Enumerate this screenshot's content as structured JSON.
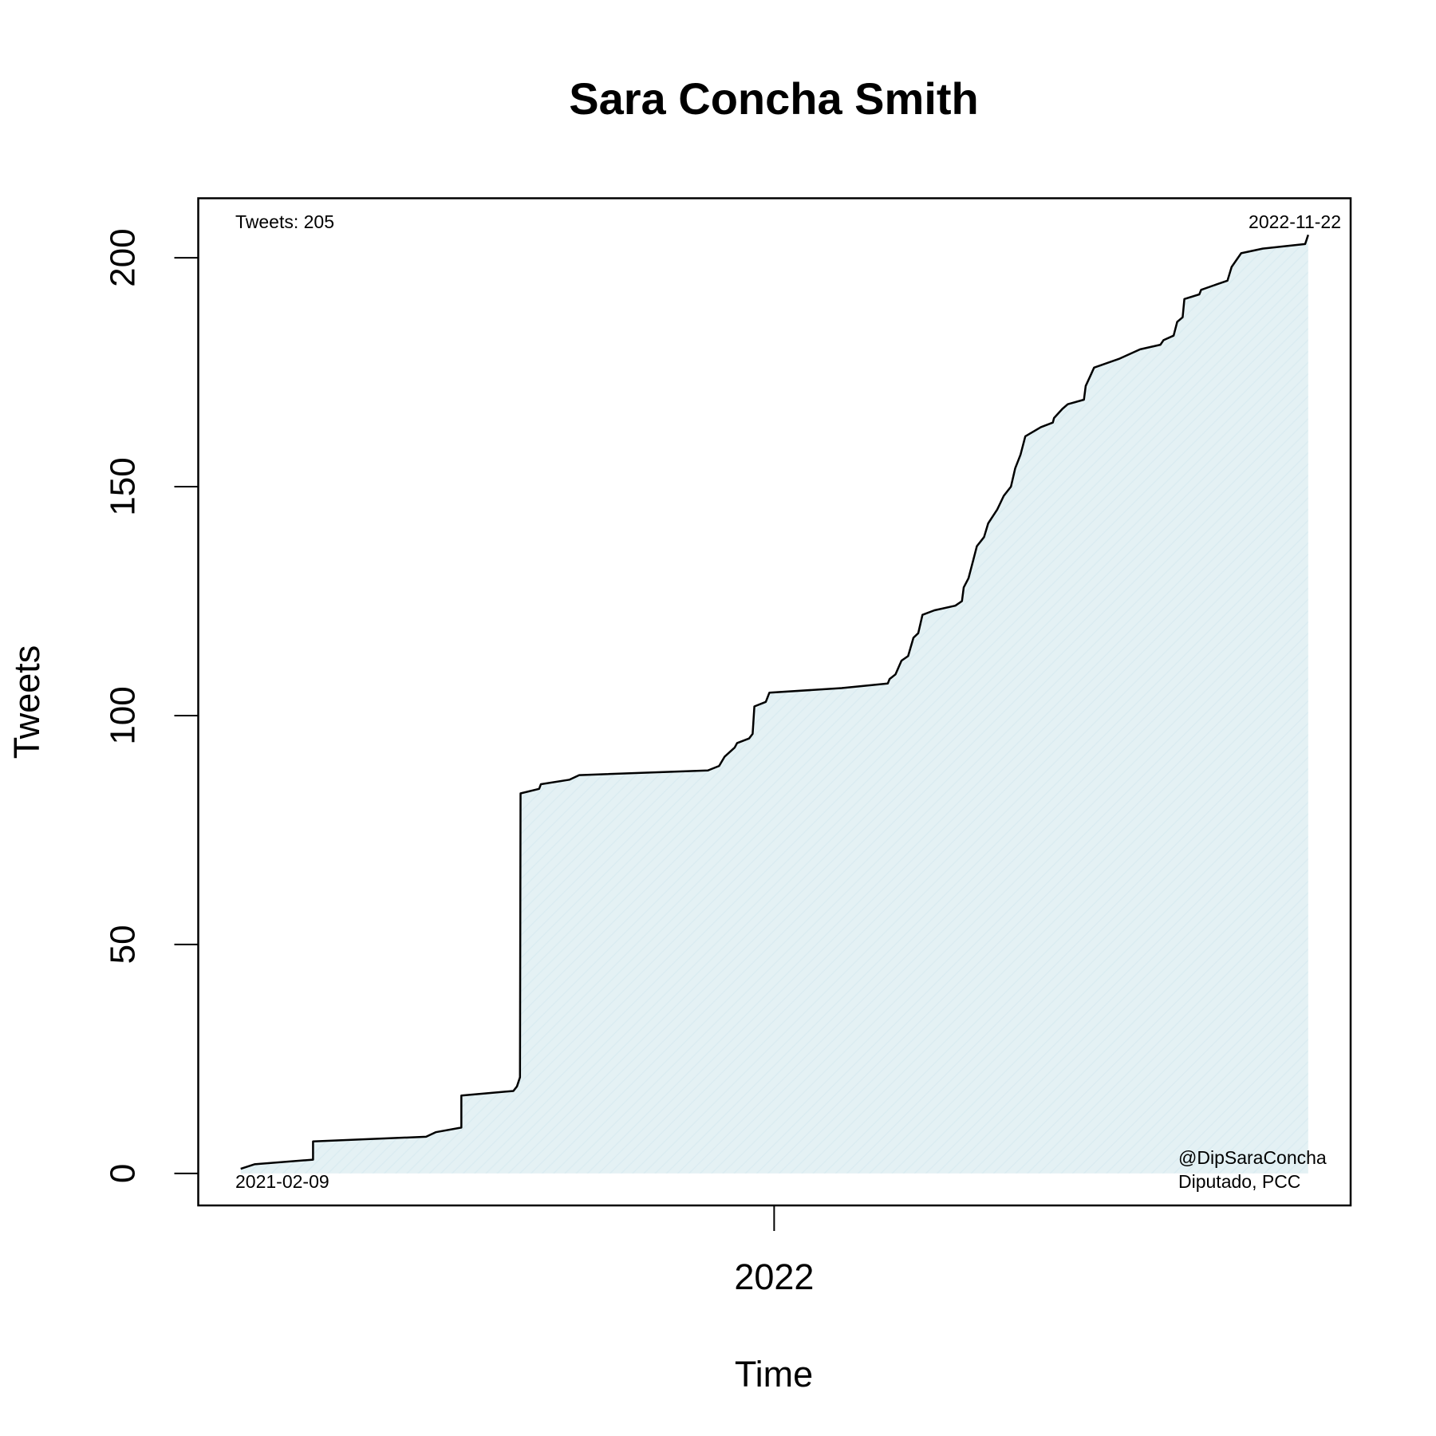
{
  "chart_data": {
    "type": "line",
    "title": "Sara Concha Smith",
    "x_label": "Time",
    "y_label": "Tweets",
    "x": [
      2021.108,
      2021.131,
      2021.229,
      2021.229,
      2021.418,
      2021.434,
      2021.477,
      2021.477,
      2021.564,
      2021.57,
      2021.575,
      2021.576,
      2021.607,
      2021.61,
      2021.658,
      2021.674,
      2021.889,
      2021.908,
      2021.917,
      2021.934,
      2021.938,
      2021.958,
      2021.964,
      2021.967,
      2021.986,
      2021.992,
      2022.113,
      2022.19,
      2022.193,
      2022.203,
      2022.213,
      2022.224,
      2022.233,
      2022.241,
      2022.248,
      2022.268,
      2022.303,
      2022.314,
      2022.317,
      2022.325,
      2022.333,
      2022.339,
      2022.351,
      2022.358,
      2022.373,
      2022.384,
      2022.396,
      2022.403,
      2022.412,
      2022.42,
      2022.446,
      2022.466,
      2022.468,
      2022.482,
      2022.491,
      2022.518,
      2022.521,
      2022.528,
      2022.535,
      2022.578,
      2022.612,
      2022.646,
      2022.651,
      2022.668,
      2022.674,
      2022.683,
      2022.686,
      2022.711,
      2022.714,
      2022.736,
      2022.758,
      2022.765,
      2022.781,
      2022.817,
      2022.888,
      2022.893
    ],
    "series": [
      {
        "name": "Tweets",
        "color": "#000000",
        "fill": "#e4f1f4",
        "values": [
          1,
          2,
          3,
          7,
          8,
          9,
          10,
          17,
          18,
          19,
          21,
          83,
          84,
          85,
          86,
          87,
          88,
          89,
          91,
          93,
          94,
          95,
          96,
          102,
          103,
          105,
          106,
          107,
          108,
          109,
          112,
          113,
          117,
          118,
          122,
          123,
          124,
          125,
          128,
          130,
          134,
          137,
          139,
          142,
          145,
          148,
          150,
          154,
          157,
          161,
          163,
          164,
          165,
          167,
          168,
          169,
          172,
          174,
          176,
          178,
          180,
          181,
          182,
          183,
          186,
          187,
          191,
          192,
          193,
          194,
          195,
          198,
          201,
          202,
          203,
          205
        ]
      }
    ],
    "xlim": [
      2021.037,
      2022.964
    ],
    "xticks": [
      2022
    ],
    "ylim": [
      -7,
      213
    ],
    "yticks": [
      0,
      50,
      100,
      150,
      200
    ],
    "annotations": {
      "total": "Tweets: 205",
      "end_date": "2022-11-22",
      "start_date": "2021-02-09",
      "handle": "@DipSaraConcha",
      "role": "Diputado, PCC"
    }
  }
}
